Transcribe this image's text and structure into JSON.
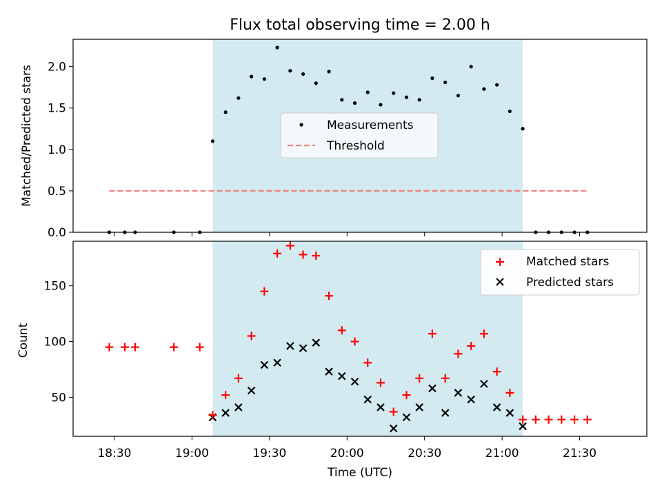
{
  "figure": {
    "title": "Flux total observing time = 2.00 h",
    "xlabel": "Time (UTC)",
    "x_tick_labels": [
      "18:30",
      "19:00",
      "19:30",
      "20:00",
      "20:30",
      "21:00",
      "21:30"
    ]
  },
  "colors": {
    "shade": "#d3eaf0",
    "measurement": "#000000",
    "threshold": "#f08080",
    "matched": "#ff0000",
    "predicted": "#000000"
  },
  "chart_data": [
    {
      "type": "scatter",
      "ylabel": "Matched/Predicted stars",
      "ylim": [
        0,
        2.33
      ],
      "yticks": [
        0.0,
        0.5,
        1.0,
        1.5,
        2.0
      ],
      "y_tick_labels": [
        "0.0",
        "0.5",
        "1.0",
        "1.5",
        "2.0"
      ],
      "xlim": [
        "18:14",
        "21:56"
      ],
      "shaded_interval": [
        "19:08",
        "21:08"
      ],
      "legend": {
        "position": "center",
        "entries": [
          "Measurements",
          "Threshold"
        ]
      },
      "threshold": {
        "name": "Threshold",
        "y": 0.5,
        "x": [
          "18:28",
          "21:33"
        ]
      },
      "series": [
        {
          "name": "Measurements",
          "x": [
            "18:28",
            "18:34",
            "18:38",
            "18:53",
            "19:03",
            "19:08",
            "19:13",
            "19:18",
            "19:23",
            "19:28",
            "19:33",
            "19:38",
            "19:43",
            "19:48",
            "19:53",
            "19:58",
            "20:03",
            "20:08",
            "20:13",
            "20:18",
            "20:23",
            "20:28",
            "20:33",
            "20:38",
            "20:43",
            "20:48",
            "20:53",
            "20:58",
            "21:03",
            "21:08",
            "21:13",
            "21:18",
            "21:23",
            "21:28",
            "21:33"
          ],
          "y": [
            0,
            0,
            0,
            0,
            0,
            1.1,
            1.45,
            1.62,
            1.88,
            1.85,
            2.23,
            1.95,
            1.91,
            1.8,
            1.94,
            1.6,
            1.56,
            1.69,
            1.54,
            1.68,
            1.63,
            1.6,
            1.86,
            1.81,
            1.65,
            2.0,
            1.73,
            1.78,
            1.46,
            1.25,
            0,
            0,
            0,
            0,
            0
          ]
        }
      ]
    },
    {
      "type": "scatter",
      "ylabel": "Count",
      "ylim": [
        15,
        190
      ],
      "yticks": [
        50,
        100,
        150
      ],
      "y_tick_labels": [
        "50",
        "100",
        "150"
      ],
      "xlim": [
        "18:14",
        "21:56"
      ],
      "shaded_interval": [
        "19:08",
        "21:08"
      ],
      "legend": {
        "position": "top-right",
        "entries": [
          "Matched stars",
          "Predicted stars"
        ]
      },
      "series": [
        {
          "name": "Matched stars",
          "x": [
            "18:28",
            "18:34",
            "18:38",
            "18:53",
            "19:03",
            "19:08",
            "19:13",
            "19:18",
            "19:23",
            "19:28",
            "19:33",
            "19:38",
            "19:43",
            "19:48",
            "19:53",
            "19:58",
            "20:03",
            "20:08",
            "20:13",
            "20:18",
            "20:23",
            "20:28",
            "20:33",
            "20:38",
            "20:43",
            "20:48",
            "20:53",
            "20:58",
            "21:03",
            "21:08",
            "21:13",
            "21:18",
            "21:23",
            "21:28",
            "21:33"
          ],
          "y": [
            95,
            95,
            95,
            95,
            95,
            34,
            52,
            67,
            105,
            145,
            179,
            186,
            178,
            177,
            141,
            110,
            100,
            81,
            63,
            37,
            52,
            67,
            107,
            67,
            89,
            96,
            107,
            73,
            54,
            30,
            30,
            30,
            30,
            30,
            30
          ]
        },
        {
          "name": "Predicted stars",
          "x": [
            "19:08",
            "19:13",
            "19:18",
            "19:23",
            "19:28",
            "19:33",
            "19:38",
            "19:43",
            "19:48",
            "19:53",
            "19:58",
            "20:03",
            "20:08",
            "20:13",
            "20:18",
            "20:23",
            "20:28",
            "20:33",
            "20:38",
            "20:43",
            "20:48",
            "20:53",
            "20:58",
            "21:03",
            "21:08"
          ],
          "y": [
            32,
            36,
            41,
            56,
            79,
            81,
            96,
            94,
            99,
            73,
            69,
            64,
            48,
            41,
            22,
            32,
            41,
            58,
            36,
            54,
            48,
            62,
            41,
            36,
            24
          ]
        }
      ]
    }
  ]
}
